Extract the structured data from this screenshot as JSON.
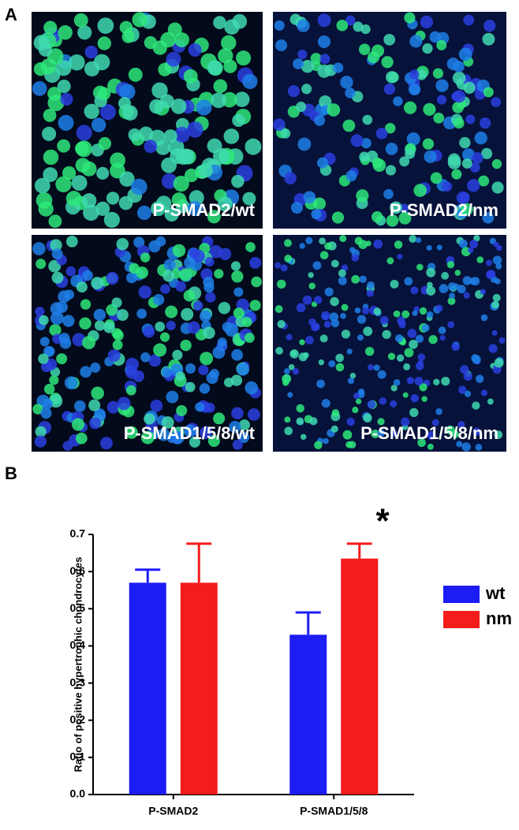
{
  "panel_a": {
    "label": "A",
    "images": [
      {
        "caption": "P-SMAD2/wt"
      },
      {
        "caption": "P-SMAD2/nm"
      },
      {
        "caption": "P-SMAD1/5/8/wt"
      },
      {
        "caption": "P-SMAD1/5/8/nm"
      }
    ]
  },
  "chart_data": {
    "type": "bar",
    "label": "B",
    "y_label": "Ratio of positive hypertrophic chondrocytes",
    "categories": [
      "P-SMAD2",
      "P-SMAD1/5/8"
    ],
    "series": [
      {
        "name": "wt",
        "color": "#1c1cf5",
        "values": [
          0.57,
          0.43
        ],
        "errors": [
          0.035,
          0.06
        ]
      },
      {
        "name": "nm",
        "color": "#f51c1c",
        "values": [
          0.57,
          0.635
        ],
        "errors": [
          0.105,
          0.04
        ]
      }
    ],
    "ylim": [
      0,
      0.7
    ],
    "yticks": [
      {
        "value": 0,
        "label": "0.0"
      },
      0.1,
      0.2,
      0.3,
      0.4,
      0.5,
      0.6,
      0.7
    ],
    "annotations": [
      {
        "text": "*"
      }
    ]
  }
}
